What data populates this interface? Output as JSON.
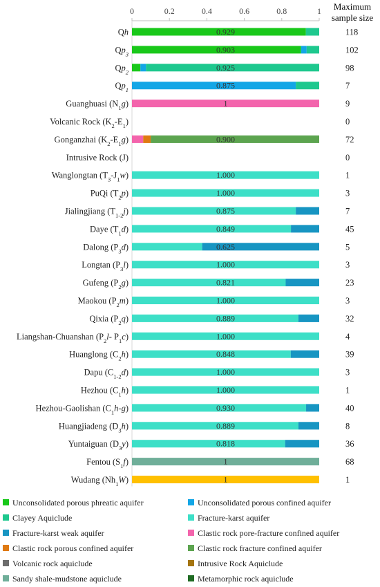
{
  "chart_data": {
    "type": "bar",
    "orientation": "horizontal",
    "stacked": true,
    "xlim": [
      0,
      1
    ],
    "x_ticks": [
      "0",
      "0.2",
      "0.4",
      "0.6",
      "0.8",
      "1"
    ],
    "right_header": [
      "Maximum",
      "sample size"
    ],
    "legend_position": "bottom",
    "series": [
      {
        "name": "Unconsolidated porous phreatic aquifer",
        "color": "#19c81a"
      },
      {
        "name": "Unconsolidated porous confined aquifer",
        "color": "#13a6e6"
      },
      {
        "name": "Clayey Aquiclude",
        "color": "#1ec88e"
      },
      {
        "name": "Fracture-karst aquifer",
        "color": "#3ddfc7"
      },
      {
        "name": "Fracture-karst weak aquifer",
        "color": "#1795c2"
      },
      {
        "name": "Clastic rock pore-fracture confined aquifer",
        "color": "#f364ac"
      },
      {
        "name": "Clastic rock porous confined aquifer",
        "color": "#df7a12"
      },
      {
        "name": "Clastic rock fracture confined aquifer",
        "color": "#5ca44f"
      },
      {
        "name": "Volcanic rock aquiclude",
        "color": "#6c6c6c"
      },
      {
        "name": "Intrusive Rock Aquiclude",
        "color": "#a4740f"
      },
      {
        "name": "Sandy shale-mudstone aquiclude",
        "color": "#6fae99"
      },
      {
        "name": "Metamorphic rock aquiclude",
        "color": "#1f6b23"
      }
    ],
    "rows": [
      {
        "label": [
          {
            "t": "Q"
          },
          {
            "t": "h",
            "i": true
          }
        ],
        "label_text": "Qh",
        "sample_size": "118",
        "value_label": "0.929",
        "segments": [
          {
            "series": 0,
            "value": 0.929
          },
          {
            "series": 2,
            "value": 0.071
          }
        ]
      },
      {
        "label": [
          {
            "t": "Q"
          },
          {
            "t": "p",
            "i": true
          },
          {
            "t": "3",
            "sub": true,
            "i": true
          }
        ],
        "label_text": "Qp3",
        "sample_size": "102",
        "value_label": "0.903",
        "segments": [
          {
            "series": 0,
            "value": 0.903
          },
          {
            "series": 1,
            "value": 0.03
          },
          {
            "series": 2,
            "value": 0.067
          }
        ]
      },
      {
        "label": [
          {
            "t": "Q"
          },
          {
            "t": "p",
            "i": true
          },
          {
            "t": "2",
            "sub": true,
            "i": true
          }
        ],
        "label_text": "Qp2",
        "sample_size": "98",
        "value_label": "0.925",
        "segments": [
          {
            "series": 0,
            "value": 0.045
          },
          {
            "series": 1,
            "value": 0.03
          },
          {
            "series": 2,
            "value": 0.925
          }
        ]
      },
      {
        "label": [
          {
            "t": "Q"
          },
          {
            "t": "p",
            "i": true
          },
          {
            "t": "1",
            "sub": true,
            "i": true
          }
        ],
        "label_text": "Qp1",
        "sample_size": "7",
        "value_label": "0.875",
        "segments": [
          {
            "series": 1,
            "value": 0.875
          },
          {
            "series": 2,
            "value": 0.125
          }
        ]
      },
      {
        "label": [
          {
            "t": "Guanghuasi (N"
          },
          {
            "t": "1",
            "sub": true
          },
          {
            "t": "g",
            "i": true
          },
          {
            "t": ")"
          }
        ],
        "label_text": "Guanghuasi (N1g)",
        "sample_size": "9",
        "value_label": "1",
        "segments": [
          {
            "series": 5,
            "value": 1.0
          }
        ]
      },
      {
        "label": [
          {
            "t": "Volcanic Rock (K"
          },
          {
            "t": "2",
            "sub": true
          },
          {
            "t": "-E"
          },
          {
            "t": "1",
            "sub": true
          },
          {
            "t": ")"
          }
        ],
        "label_text": "Volcanic Rock (K2-E1)",
        "sample_size": "0",
        "value_label": "",
        "segments": []
      },
      {
        "label": [
          {
            "t": "Gonganzhai (K"
          },
          {
            "t": "2",
            "sub": true
          },
          {
            "t": "-E"
          },
          {
            "t": "1",
            "sub": true
          },
          {
            "t": "g",
            "i": true
          },
          {
            "t": ")"
          }
        ],
        "label_text": "Gonganzhai (K2-E1g)",
        "sample_size": "72",
        "value_label": "0.900",
        "segments": [
          {
            "series": 5,
            "value": 0.06
          },
          {
            "series": 6,
            "value": 0.04
          },
          {
            "series": 7,
            "value": 0.9
          }
        ]
      },
      {
        "label": [
          {
            "t": "Intrusive Rock (J)"
          }
        ],
        "label_text": "Intrusive Rock (J)",
        "sample_size": "0",
        "value_label": "",
        "segments": []
      },
      {
        "label": [
          {
            "t": "Wanglongtan (T"
          },
          {
            "t": "3",
            "sub": true
          },
          {
            "t": "-J"
          },
          {
            "t": "1",
            "sub": true
          },
          {
            "t": "w",
            "i": true
          },
          {
            "t": ")"
          }
        ],
        "label_text": "Wanglongtan (T3-J1w)",
        "sample_size": "1",
        "value_label": "1.000",
        "segments": [
          {
            "series": 3,
            "value": 1.0
          }
        ]
      },
      {
        "label": [
          {
            "t": "PuQi (T"
          },
          {
            "t": "2",
            "sub": true
          },
          {
            "t": "p",
            "i": true
          },
          {
            "t": ")"
          }
        ],
        "label_text": "PuQi (T2p)",
        "sample_size": "3",
        "value_label": "1.000",
        "segments": [
          {
            "series": 3,
            "value": 1.0
          }
        ]
      },
      {
        "label": [
          {
            "t": "Jialingjiang (T"
          },
          {
            "t": "1-2",
            "sub": true
          },
          {
            "t": "j",
            "i": true
          },
          {
            "t": ")"
          }
        ],
        "label_text": "Jialingjiang (T1-2j)",
        "sample_size": "7",
        "value_label": "0.875",
        "segments": [
          {
            "series": 3,
            "value": 0.875
          },
          {
            "series": 4,
            "value": 0.125
          }
        ]
      },
      {
        "label": [
          {
            "t": "Daye (T"
          },
          {
            "t": "1",
            "sub": true
          },
          {
            "t": "d",
            "i": true
          },
          {
            "t": ")"
          }
        ],
        "label_text": "Daye (T1d)",
        "sample_size": "45",
        "value_label": "0.849",
        "segments": [
          {
            "series": 3,
            "value": 0.849
          },
          {
            "series": 4,
            "value": 0.151
          }
        ]
      },
      {
        "label": [
          {
            "t": "Dalong (P"
          },
          {
            "t": "3",
            "sub": true
          },
          {
            "t": "d",
            "i": true
          },
          {
            "t": ")"
          }
        ],
        "label_text": "Dalong (P3d)",
        "sample_size": "5",
        "value_label": "0.625",
        "segments": [
          {
            "series": 3,
            "value": 0.375
          },
          {
            "series": 4,
            "value": 0.625
          }
        ]
      },
      {
        "label": [
          {
            "t": "Longtan (P"
          },
          {
            "t": "3",
            "sub": true
          },
          {
            "t": "l",
            "i": true
          },
          {
            "t": ")"
          }
        ],
        "label_text": "Longtan (P3l)",
        "sample_size": "3",
        "value_label": "1.000",
        "segments": [
          {
            "series": 3,
            "value": 1.0
          }
        ]
      },
      {
        "label": [
          {
            "t": "Gufeng (P"
          },
          {
            "t": "2",
            "sub": true
          },
          {
            "t": "g",
            "i": true
          },
          {
            "t": ")"
          }
        ],
        "label_text": "Gufeng (P2g)",
        "sample_size": "23",
        "value_label": "0.821",
        "segments": [
          {
            "series": 3,
            "value": 0.821
          },
          {
            "series": 4,
            "value": 0.179
          }
        ]
      },
      {
        "label": [
          {
            "t": "Maokou (P"
          },
          {
            "t": "2",
            "sub": true
          },
          {
            "t": "m",
            "i": true
          },
          {
            "t": ")"
          }
        ],
        "label_text": "Maokou (P2m)",
        "sample_size": "3",
        "value_label": "1.000",
        "segments": [
          {
            "series": 3,
            "value": 1.0
          }
        ]
      },
      {
        "label": [
          {
            "t": "Qixia (P"
          },
          {
            "t": "2",
            "sub": true
          },
          {
            "t": "q",
            "i": true
          },
          {
            "t": ")"
          }
        ],
        "label_text": "Qixia (P2q)",
        "sample_size": "32",
        "value_label": "0.889",
        "segments": [
          {
            "series": 3,
            "value": 0.889
          },
          {
            "series": 4,
            "value": 0.111
          }
        ]
      },
      {
        "label": [
          {
            "t": "Liangshan-Chuanshan (P"
          },
          {
            "t": "2",
            "sub": true
          },
          {
            "t": "l",
            "i": true
          },
          {
            "t": "- P"
          },
          {
            "t": "1",
            "sub": true
          },
          {
            "t": "c",
            "i": true
          },
          {
            "t": ")"
          }
        ],
        "label_text": "Liangshan-Chuanshan (P2l- P1c)",
        "sample_size": "4",
        "value_label": "1.000",
        "segments": [
          {
            "series": 3,
            "value": 1.0
          }
        ]
      },
      {
        "label": [
          {
            "t": "Huanglong (C"
          },
          {
            "t": "2",
            "sub": true
          },
          {
            "t": "h",
            "i": true
          },
          {
            "t": ")"
          }
        ],
        "label_text": "Huanglong (C2h)",
        "sample_size": "39",
        "value_label": "0.848",
        "segments": [
          {
            "series": 3,
            "value": 0.848
          },
          {
            "series": 4,
            "value": 0.152
          }
        ]
      },
      {
        "label": [
          {
            "t": "Dapu (C"
          },
          {
            "t": "1-2",
            "sub": true
          },
          {
            "t": "d",
            "i": true
          },
          {
            "t": ")"
          }
        ],
        "label_text": "Dapu (C1-2d)",
        "sample_size": "3",
        "value_label": "1.000",
        "segments": [
          {
            "series": 3,
            "value": 1.0
          }
        ]
      },
      {
        "label": [
          {
            "t": "Hezhou (C"
          },
          {
            "t": "1",
            "sub": true
          },
          {
            "t": "h",
            "i": true
          },
          {
            "t": ")"
          }
        ],
        "label_text": "Hezhou (C1h)",
        "sample_size": "1",
        "value_label": "1.000",
        "segments": [
          {
            "series": 3,
            "value": 1.0
          }
        ]
      },
      {
        "label": [
          {
            "t": "Hezhou-Gaolishan (C"
          },
          {
            "t": "1",
            "sub": true
          },
          {
            "t": "h",
            "i": true
          },
          {
            "t": "-"
          },
          {
            "t": "g",
            "i": true
          },
          {
            "t": ")"
          }
        ],
        "label_text": "Hezhou-Gaolishan (C1h-g)",
        "sample_size": "40",
        "value_label": "0.930",
        "segments": [
          {
            "series": 3,
            "value": 0.93
          },
          {
            "series": 4,
            "value": 0.07
          }
        ]
      },
      {
        "label": [
          {
            "t": "Huangjiadeng (D"
          },
          {
            "t": "3",
            "sub": true
          },
          {
            "t": "h",
            "i": true
          },
          {
            "t": ")"
          }
        ],
        "label_text": "Huangjiadeng (D3h)",
        "sample_size": "8",
        "value_label": "0.889",
        "segments": [
          {
            "series": 3,
            "value": 0.889
          },
          {
            "series": 4,
            "value": 0.111
          }
        ]
      },
      {
        "label": [
          {
            "t": "Yuntaiguan (D"
          },
          {
            "t": "3",
            "sub": true
          },
          {
            "t": "y",
            "i": true
          },
          {
            "t": ")"
          }
        ],
        "label_text": "Yuntaiguan (D3y)",
        "sample_size": "36",
        "value_label": "0.818",
        "segments": [
          {
            "series": 3,
            "value": 0.818
          },
          {
            "series": 4,
            "value": 0.182
          }
        ]
      },
      {
        "label": [
          {
            "t": "Fentou (S"
          },
          {
            "t": "1",
            "sub": true
          },
          {
            "t": "f",
            "i": true
          },
          {
            "t": ")"
          }
        ],
        "label_text": "Fentou (S1f)",
        "sample_size": "68",
        "value_label": "1",
        "segments": [
          {
            "series": 10,
            "value": 1.0
          }
        ]
      },
      {
        "label": [
          {
            "t": "Wudang (Nh"
          },
          {
            "t": "1",
            "sub": true
          },
          {
            "t": "W",
            "i": true
          },
          {
            "t": ")"
          }
        ],
        "label_text": "Wudang (Nh1W)",
        "sample_size": "1",
        "value_label": "1",
        "segments": [
          {
            "series": 8,
            "value": 0.0
          },
          {
            "series": -1,
            "value": 1.0
          }
        ]
      }
    ],
    "extra_colors": {
      "wudang_bar": "#ffc000"
    }
  }
}
